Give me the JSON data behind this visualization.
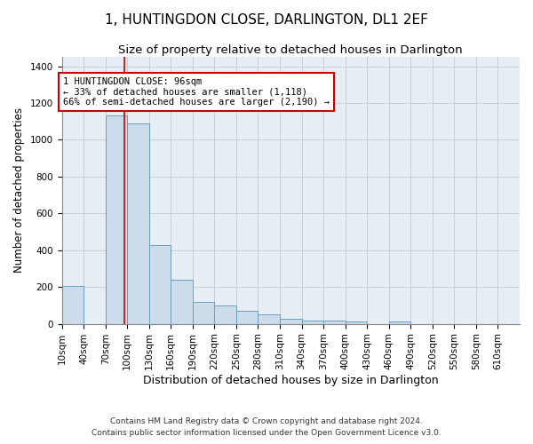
{
  "title": "1, HUNTINGDON CLOSE, DARLINGTON, DL1 2EF",
  "subtitle": "Size of property relative to detached houses in Darlington",
  "xlabel": "Distribution of detached houses by size in Darlington",
  "ylabel": "Number of detached properties",
  "footer_line1": "Contains HM Land Registry data © Crown copyright and database right 2024.",
  "footer_line2": "Contains public sector information licensed under the Open Government Licence v3.0.",
  "bar_color": "#cddcea",
  "bar_edge_color": "#6a9fc0",
  "grid_color": "#c8d0da",
  "bg_color": "#e8eef5",
  "annotation_text_line1": "1 HUNTINGDON CLOSE: 96sqm",
  "annotation_text_line2": "← 33% of detached houses are smaller (1,118)",
  "annotation_text_line3": "66% of semi-detached houses are larger (2,190) →",
  "red_line_x": 96,
  "categories": [
    "10sqm",
    "40sqm",
    "70sqm",
    "100sqm",
    "130sqm",
    "160sqm",
    "190sqm",
    "220sqm",
    "250sqm",
    "280sqm",
    "310sqm",
    "340sqm",
    "370sqm",
    "400sqm",
    "430sqm",
    "460sqm",
    "490sqm",
    "520sqm",
    "550sqm",
    "580sqm",
    "610sqm"
  ],
  "bin_starts": [
    10,
    40,
    70,
    100,
    130,
    160,
    190,
    220,
    250,
    280,
    310,
    340,
    370,
    400,
    430,
    460,
    490,
    520,
    550,
    580,
    610
  ],
  "bin_width": 30,
  "values": [
    205,
    0,
    1130,
    1090,
    430,
    240,
    120,
    100,
    70,
    50,
    30,
    20,
    20,
    15,
    0,
    15,
    0,
    0,
    0,
    0,
    0
  ],
  "ylim": [
    0,
    1450
  ],
  "yticks": [
    0,
    200,
    400,
    600,
    800,
    1000,
    1200,
    1400
  ],
  "title_fontsize": 11,
  "subtitle_fontsize": 9.5,
  "xlabel_fontsize": 9,
  "ylabel_fontsize": 8.5,
  "tick_fontsize": 7.5,
  "footer_fontsize": 6.5,
  "ann_fontsize": 7.5
}
